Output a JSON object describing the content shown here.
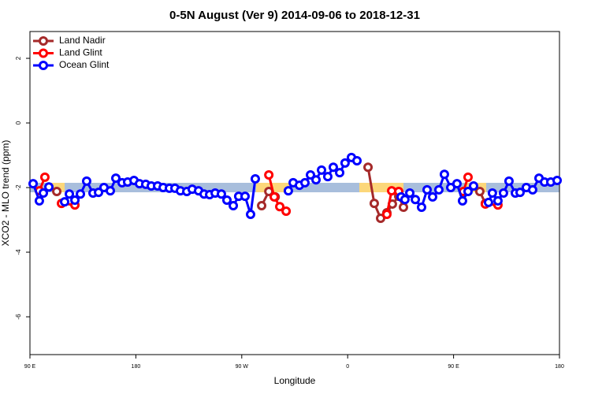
{
  "chart_data": {
    "type": "line",
    "title": "0-5N August (Ver 9)   2014-09-06 to 2018-12-31",
    "xlabel": "Longitude",
    "ylabel": "XCO2 - MLO trend (ppm)",
    "xlim": [
      90,
      540
    ],
    "xticks": [
      {
        "value": 90,
        "label": "90 E"
      },
      {
        "value": 180,
        "label": "180"
      },
      {
        "value": 270,
        "label": "90 W"
      },
      {
        "value": 360,
        "label": "0"
      },
      {
        "value": 450,
        "label": "90 E"
      },
      {
        "value": 540,
        "label": "180"
      }
    ],
    "ylim": [
      -7.17,
      2.83
    ],
    "yticks": [
      2,
      0,
      -2,
      -4,
      -6
    ],
    "legend": "top-left",
    "series": [
      {
        "name": "Land Nadir",
        "color": "#a52a2a",
        "x": [
          112.8,
          null,
          286.9,
          293.0,
          298.4,
          null,
          377.3,
          382.6,
          388.0,
          393.3,
          398.0,
          403.4,
          407.4,
          null,
          472.3,
          477.0
        ],
        "values": [
          -2.12,
          null,
          -2.56,
          -2.12,
          -2.29,
          null,
          -1.37,
          -2.49,
          -2.95,
          -2.78,
          -2.51,
          -2.27,
          -2.61,
          null,
          -2.12,
          -2.49
        ]
      },
      {
        "name": "Land Glint",
        "color": "#ff0000",
        "x": [
          98.0,
          102.7,
          null,
          116.8,
          128.2,
          null,
          293.0,
          297.6,
          302.3,
          307.7,
          null,
          393.3,
          397.4,
          403.4,
          null,
          458.3,
          462.3,
          null,
          477.0,
          487.7
        ],
        "values": [
          -2.1,
          -1.68,
          null,
          -2.49,
          -2.54,
          null,
          -1.61,
          -2.29,
          -2.59,
          -2.73,
          null,
          -2.83,
          -2.1,
          -2.12,
          null,
          -2.12,
          -1.68,
          null,
          -2.51,
          -2.54
        ]
      },
      {
        "name": "Ocean Glint",
        "color": "#0000ff",
        "x": [
          92.7,
          98.0,
          101.4,
          106.1,
          null,
          119.5,
          123.5,
          128.2,
          132.9,
          138.2,
          143.6,
          148.3,
          152.9,
          158.3,
          163.0,
          168.3,
          173.0,
          178.4,
          183.1,
          188.4,
          193.1,
          198.5,
          203.2,
          208.5,
          213.2,
          217.9,
          223.3,
          227.9,
          233.3,
          238.0,
          242.7,
          247.4,
          252.7,
          257.4,
          262.8,
          267.4,
          272.8,
          277.5,
          281.5,
          null,
          309.6,
          313.7,
          319.0,
          323.7,
          328.4,
          333.1,
          337.8,
          343.1,
          347.8,
          353.2,
          357.8,
          363.2,
          367.9,
          null,
          405.4,
          408.7,
          412.8,
          417.5,
          422.8,
          427.5,
          432.2,
          437.5,
          442.2,
          447.6,
          452.9,
          457.6,
          462.3,
          467.0,
          null,
          479.7,
          483.0,
          487.7,
          492.4,
          497.1,
          502.5,
          506.5,
          511.8,
          517.2,
          522.6,
          527.3,
          532.6,
          538.0
        ],
        "values": [
          -1.88,
          -2.41,
          -2.17,
          -1.98,
          null,
          -2.44,
          -2.2,
          -2.39,
          -2.2,
          -1.8,
          -2.17,
          -2.15,
          -2.0,
          -2.1,
          -1.71,
          -1.85,
          -1.83,
          -1.78,
          -1.88,
          -1.9,
          -1.95,
          -1.95,
          -2.0,
          -2.02,
          -2.02,
          -2.1,
          -2.12,
          -2.05,
          -2.1,
          -2.2,
          -2.22,
          -2.17,
          -2.2,
          -2.39,
          -2.56,
          -2.27,
          -2.27,
          -2.83,
          -1.73,
          null,
          -2.1,
          -1.85,
          -1.93,
          -1.85,
          -1.61,
          -1.76,
          -1.46,
          -1.66,
          -1.37,
          -1.54,
          -1.24,
          -1.07,
          -1.17,
          null,
          -2.29,
          -2.37,
          -2.17,
          -2.37,
          -2.61,
          -2.07,
          -2.29,
          -2.07,
          -1.59,
          -2.0,
          -1.88,
          -2.41,
          -2.12,
          -1.95,
          null,
          -2.46,
          -2.17,
          -2.41,
          -2.17,
          -1.8,
          -2.17,
          -2.15,
          -2.0,
          -2.07,
          -1.71,
          -1.83,
          -1.83,
          -1.78
        ]
      }
    ]
  }
}
